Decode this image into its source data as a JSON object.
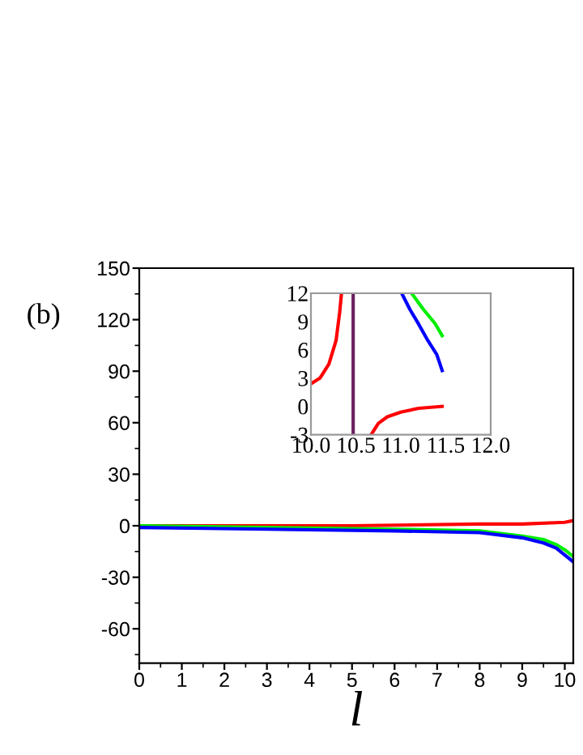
{
  "chart_data": [
    {
      "type": "line",
      "xlabel": "l",
      "annotations": [
        "(b)"
      ],
      "xlim": [
        0,
        10.2
      ],
      "ylim": [
        -80,
        150
      ],
      "xticks": [
        0,
        1,
        2,
        3,
        4,
        5,
        6,
        7,
        8,
        9,
        10
      ],
      "yticks": [
        -60,
        -30,
        0,
        30,
        60,
        90,
        120,
        150
      ],
      "grid": false,
      "legend": false,
      "marker": "none",
      "line_style": "solid",
      "series": [
        {
          "color": "#ff0000",
          "x": [
            0,
            5,
            8,
            9,
            10,
            10.2
          ],
          "values": [
            0,
            0,
            1,
            1,
            2,
            3
          ]
        },
        {
          "color": "#00ee00",
          "x": [
            0,
            3,
            6,
            8,
            9,
            9.5,
            9.8,
            10,
            10.2
          ],
          "values": [
            0,
            -1,
            -2,
            -3,
            -6,
            -8,
            -11,
            -14,
            -18
          ]
        },
        {
          "color": "#0000ff",
          "x": [
            0,
            3,
            6,
            8,
            9,
            9.5,
            9.8,
            10,
            10.2
          ],
          "values": [
            -1,
            -2,
            -3,
            -4,
            -7,
            -10,
            -13,
            -17,
            -21
          ]
        }
      ]
    },
    {
      "type": "line",
      "xlim": [
        10,
        12
      ],
      "ylim": [
        -3,
        12
      ],
      "xticks": [
        {
          "value": 10,
          "label": "10.0"
        },
        {
          "value": 10.5,
          "label": "10.5"
        },
        {
          "value": 11,
          "label": "11.0"
        },
        {
          "value": 11.5,
          "label": "11.5"
        },
        {
          "value": 12,
          "label": "12.0"
        }
      ],
      "yticks": [
        -3,
        0,
        3,
        6,
        9,
        12
      ],
      "grid": false,
      "legend": false,
      "marker": "none",
      "line_style": "solid",
      "ref_lines": [
        {
          "axis": "x",
          "value": 10.47,
          "label": null,
          "color": "#6a2060",
          "line_style": "solid"
        }
      ],
      "series": [
        {
          "color": "#ff0000",
          "x": [
            10,
            10.1,
            10.2,
            10.28,
            10.32,
            10.34
          ],
          "values": [
            2.4,
            3,
            4.5,
            7,
            10,
            12
          ]
        },
        {
          "color": "#ff0000",
          "x": [
            10.67,
            10.75,
            10.85,
            11,
            11.2,
            11.46
          ],
          "values": [
            -3,
            -1.8,
            -1.1,
            -0.6,
            -0.2,
            0
          ]
        },
        {
          "color": "#00ee00",
          "x": [
            11.12,
            11.25,
            11.38,
            11.46
          ],
          "values": [
            12,
            10.3,
            8.8,
            7.5
          ]
        },
        {
          "color": "#0000ff",
          "x": [
            11.01,
            11.1,
            11.2,
            11.3,
            11.4,
            11.46
          ],
          "values": [
            12,
            10.3,
            8.7,
            7,
            5.5,
            3.8
          ]
        }
      ]
    }
  ]
}
